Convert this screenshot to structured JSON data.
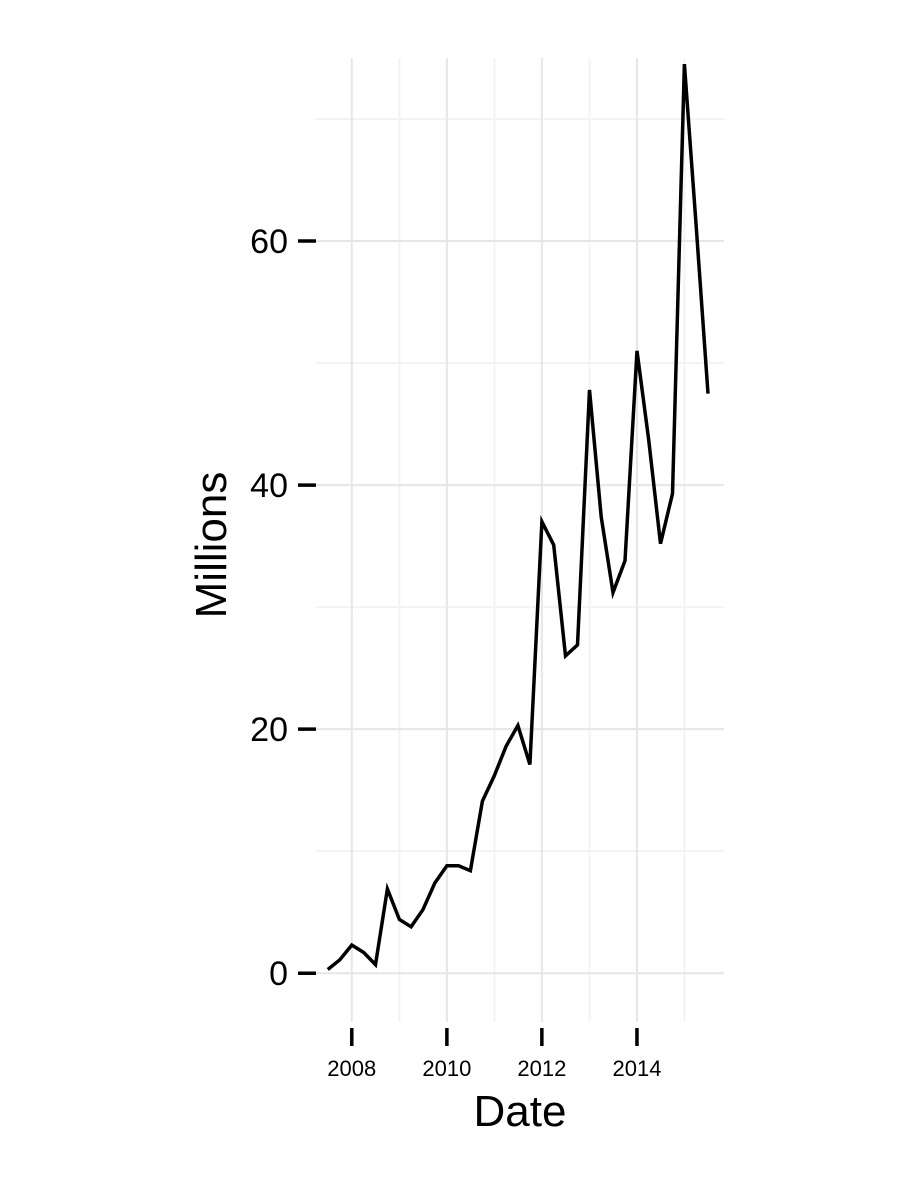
{
  "chart_data": {
    "type": "line",
    "xlabel": "Date",
    "ylabel": "Millions",
    "x_ticks": [
      {
        "value": "2008-01-01",
        "label": "2008"
      },
      {
        "value": "2010-01-01",
        "label": "2010"
      },
      {
        "value": "2012-01-01",
        "label": "2012"
      },
      {
        "value": "2014-01-01",
        "label": "2014"
      }
    ],
    "y_ticks": [
      {
        "value": 0,
        "label": "0"
      },
      {
        "value": 20,
        "label": "20"
      },
      {
        "value": 40,
        "label": "40"
      },
      {
        "value": 60,
        "label": "60"
      }
    ],
    "xlim": [
      "2007-04-01",
      "2015-11-01"
    ],
    "ylim": [
      -4,
      75
    ],
    "grid": true,
    "legend": "none",
    "line_color": "#000000",
    "series": [
      {
        "x": [
          "2007-07-01",
          "2007-10-01",
          "2008-01-01",
          "2008-04-01",
          "2008-07-01",
          "2008-10-01",
          "2009-01-01",
          "2009-04-01",
          "2009-07-01",
          "2009-10-01",
          "2010-01-01",
          "2010-04-01",
          "2010-07-01",
          "2010-10-01",
          "2011-01-01",
          "2011-04-01",
          "2011-07-01",
          "2011-10-01",
          "2012-01-01",
          "2012-04-01",
          "2012-07-01",
          "2012-10-01",
          "2013-01-01",
          "2013-04-01",
          "2013-07-01",
          "2013-10-01",
          "2014-01-01",
          "2014-04-01",
          "2014-07-01",
          "2014-10-01",
          "2015-01-01",
          "2015-04-01",
          "2015-07-01"
        ],
        "values": [
          0.3,
          1.1,
          2.3,
          1.7,
          0.7,
          6.9,
          4.4,
          3.8,
          5.2,
          7.4,
          8.8,
          8.8,
          8.4,
          14.1,
          16.2,
          18.6,
          20.3,
          17.1,
          37.0,
          35.1,
          26.0,
          26.9,
          47.8,
          37.4,
          31.2,
          33.8,
          51.0,
          43.7,
          35.2,
          39.3,
          74.5,
          61.2,
          47.5
        ]
      }
    ]
  }
}
